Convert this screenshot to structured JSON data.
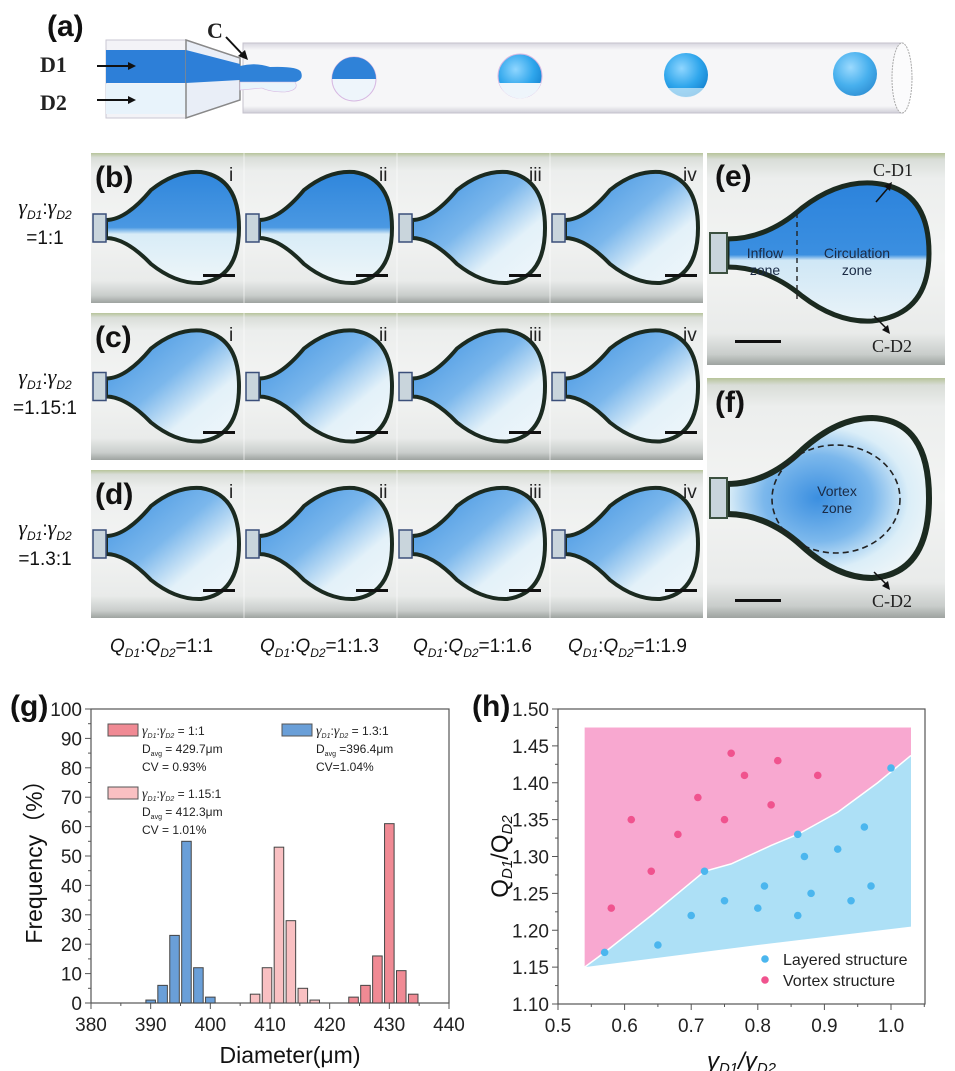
{
  "panels": {
    "a": {
      "label": "(a)",
      "inlet_labels": [
        "D1",
        "D2"
      ],
      "junction_label": "C"
    },
    "b": {
      "label": "(b)",
      "row_label": {
        "symbol": "γ",
        "sub1": "D1",
        "sep": ":",
        "sub2": "D2",
        "value": "=1:1"
      },
      "frames": [
        "i",
        "ii",
        "iii",
        "iv"
      ]
    },
    "c": {
      "label": "(c)",
      "row_label": {
        "symbol": "γ",
        "sub1": "D1",
        "sep": ":",
        "sub2": "D2",
        "value": "=1.15:1"
      },
      "frames": [
        "i",
        "ii",
        "iii",
        "iv"
      ]
    },
    "d": {
      "label": "(d)",
      "row_label": {
        "symbol": "γ",
        "sub1": "D1",
        "sep": ":",
        "sub2": "D2",
        "value": "=1.3:1"
      },
      "frames": [
        "i",
        "ii",
        "iii",
        "iv"
      ]
    },
    "e": {
      "label": "(e)",
      "top_annotation": "C-D1",
      "bottom_annotation": "C-D2",
      "zone_left": [
        "Inflow",
        "zone"
      ],
      "zone_right": [
        "Circulation",
        "zone"
      ]
    },
    "f": {
      "label": "(f)",
      "bottom_annotation": "C-D2",
      "zone": [
        "Vortex",
        "zone"
      ]
    },
    "flow_ratios": [
      {
        "q1": "Q",
        "s1": "D1",
        "q2": "Q",
        "s2": "D2",
        "value": "=1:1"
      },
      {
        "q1": "Q",
        "s1": "D1",
        "q2": "Q",
        "s2": "D2",
        "value": "=1:1.3"
      },
      {
        "q1": "Q",
        "s1": "D1",
        "q2": "Q",
        "s2": "D2",
        "value": "=1:1.6"
      },
      {
        "q1": "Q",
        "s1": "D1",
        "q2": "Q",
        "s2": "D2",
        "value": "=1:1.9"
      }
    ]
  },
  "colors": {
    "red": "#f08a94",
    "pink": "#f9c0c2",
    "blue": "#6a9fd8",
    "vortex_region": "#f8a8d0",
    "layered_region": "#ade0f6",
    "vortex_point": "#f0538e",
    "layered_point": "#4bb6ee",
    "fluid_blue": "#2f8fe0"
  },
  "chart_data": [
    {
      "id": "g",
      "panel_label": "(g)",
      "type": "bar",
      "title": "",
      "xlabel": "Diameter(μm)",
      "ylabel": "Frequency（%）",
      "xlim": [
        380,
        440
      ],
      "ylim": [
        0,
        100
      ],
      "xticks": [
        380,
        390,
        400,
        410,
        420,
        430,
        440
      ],
      "yticks": [
        0,
        10,
        20,
        30,
        40,
        50,
        60,
        70,
        80,
        90,
        100
      ],
      "grid": false,
      "legend_position": "top",
      "series": [
        {
          "name": "γD1:γD2 = 1:1",
          "legend_name": {
            "sub1": "D1",
            "sub2": "D2",
            "ratio": "= 1:1"
          },
          "stats": [
            "D avg = 429.7μm",
            "CV = 0.93%"
          ],
          "davg": "= 429.7μm",
          "cv": "CV = 0.93%",
          "color_key": "red",
          "x": [
            424,
            426,
            428,
            430,
            432,
            434
          ],
          "values": [
            2,
            6,
            16,
            61,
            11,
            3
          ]
        },
        {
          "name": "γD1:γD2 = 1.15:1",
          "legend_name": {
            "sub1": "D1",
            "sub2": "D2",
            "ratio": "= 1.15:1"
          },
          "davg": "= 412.3μm",
          "cv": "CV = 1.01%",
          "color_key": "pink",
          "x": [
            407.5,
            409.5,
            411.5,
            413.5,
            415.5,
            417.5
          ],
          "values": [
            3,
            12,
            53,
            28,
            5,
            1
          ]
        },
        {
          "name": "γD1:γD2 = 1.3:1",
          "legend_name": {
            "sub1": "D1",
            "sub2": "D2",
            "ratio": "= 1.3:1"
          },
          "davg": "=396.4μm",
          "cv": "CV=1.04%",
          "color_key": "blue",
          "x": [
            390,
            392,
            394,
            396,
            398,
            400
          ],
          "values": [
            1,
            6,
            23,
            55,
            12,
            2
          ]
        }
      ]
    },
    {
      "id": "h",
      "panel_label": "(h)",
      "type": "scatter",
      "title": "",
      "xlabel": "γD1/γD2",
      "ylabel": "QD1/QD2",
      "xlim": [
        0.5,
        1.05
      ],
      "ylim": [
        1.1,
        1.5
      ],
      "xticks": [
        "0.5",
        "0.6",
        "0.7",
        "0.8",
        "0.9",
        "1.0"
      ],
      "yticks": [
        "1.10",
        "1.15",
        "1.20",
        "1.25",
        "1.30",
        "1.35",
        "1.40",
        "1.45",
        "1.50"
      ],
      "grid": false,
      "legend_position": "bottom-right",
      "regions": [
        {
          "name": "Vortex region",
          "color_key": "vortex_region",
          "polygon": [
            [
              0.54,
              1.15
            ],
            [
              0.54,
              1.475
            ],
            [
              1.03,
              1.475
            ],
            [
              1.03,
              1.437
            ],
            [
              0.98,
              1.4
            ],
            [
              0.92,
              1.36
            ],
            [
              0.86,
              1.33
            ],
            [
              0.82,
              1.315
            ],
            [
              0.76,
              1.29
            ],
            [
              0.72,
              1.28
            ],
            [
              0.64,
              1.22
            ],
            [
              0.57,
              1.17
            ]
          ]
        },
        {
          "name": "Layered region",
          "color_key": "layered_region",
          "polygon": [
            [
              0.54,
              1.15
            ],
            [
              0.57,
              1.17
            ],
            [
              0.64,
              1.22
            ],
            [
              0.72,
              1.28
            ],
            [
              0.76,
              1.29
            ],
            [
              0.82,
              1.315
            ],
            [
              0.86,
              1.33
            ],
            [
              0.92,
              1.36
            ],
            [
              0.98,
              1.4
            ],
            [
              1.03,
              1.437
            ],
            [
              1.03,
              1.205
            ],
            [
              0.8,
              1.18
            ],
            [
              0.54,
              1.15
            ]
          ]
        }
      ],
      "series": [
        {
          "name": "Layered structure",
          "color_key": "layered_point",
          "points": [
            [
              0.57,
              1.17
            ],
            [
              0.65,
              1.18
            ],
            [
              0.7,
              1.22
            ],
            [
              0.72,
              1.28
            ],
            [
              0.75,
              1.24
            ],
            [
              0.8,
              1.23
            ],
            [
              0.81,
              1.26
            ],
            [
              0.86,
              1.22
            ],
            [
              0.86,
              1.33
            ],
            [
              0.87,
              1.3
            ],
            [
              0.88,
              1.25
            ],
            [
              0.92,
              1.31
            ],
            [
              0.94,
              1.24
            ],
            [
              0.96,
              1.34
            ],
            [
              0.97,
              1.26
            ],
            [
              1.0,
              1.42
            ]
          ]
        },
        {
          "name": "Vortex structure",
          "color_key": "vortex_point",
          "points": [
            [
              0.58,
              1.23
            ],
            [
              0.61,
              1.35
            ],
            [
              0.64,
              1.28
            ],
            [
              0.68,
              1.33
            ],
            [
              0.71,
              1.38
            ],
            [
              0.75,
              1.35
            ],
            [
              0.76,
              1.44
            ],
            [
              0.78,
              1.41
            ],
            [
              0.82,
              1.37
            ],
            [
              0.83,
              1.43
            ],
            [
              0.89,
              1.41
            ]
          ]
        }
      ]
    }
  ]
}
